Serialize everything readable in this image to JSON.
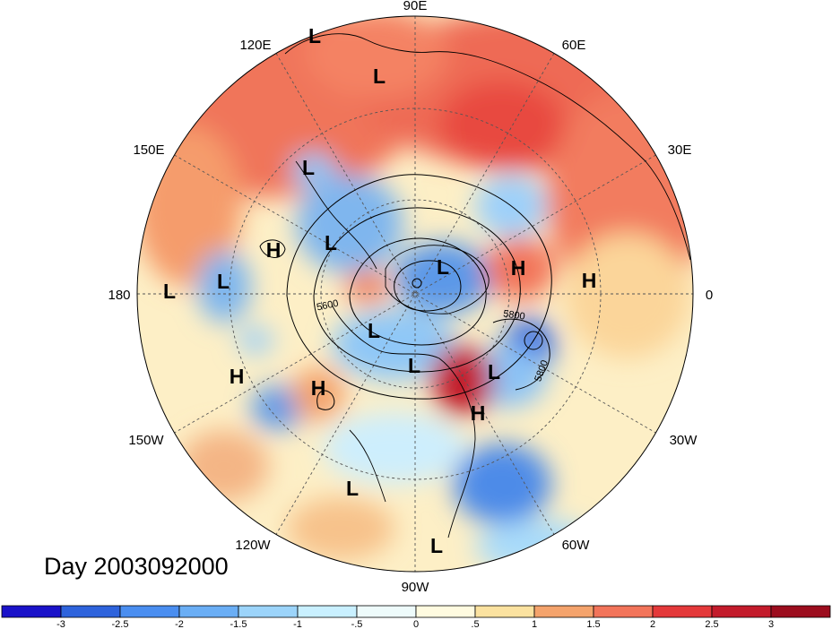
{
  "map": {
    "projection": "north-polar-stereographic",
    "longitude_labels": [
      "90E",
      "120E",
      "60E",
      "150E",
      "30E",
      "180",
      "0",
      "150W",
      "30W",
      "120W",
      "60W",
      "90W"
    ],
    "pressure_systems": [
      {
        "type": "L"
      },
      {
        "type": "L"
      },
      {
        "type": "L"
      },
      {
        "type": "L"
      },
      {
        "type": "H"
      },
      {
        "type": "L"
      },
      {
        "type": "L"
      },
      {
        "type": "H"
      },
      {
        "type": "H"
      },
      {
        "type": "L"
      },
      {
        "type": "L"
      },
      {
        "type": "L"
      },
      {
        "type": "H"
      },
      {
        "type": "L"
      },
      {
        "type": "H"
      },
      {
        "type": "H"
      },
      {
        "type": "L"
      },
      {
        "type": "L"
      }
    ],
    "contour_labels": [
      "5600",
      "5800",
      "5800"
    ],
    "colors": {
      "strong_negative": "#1414c8",
      "weak_negative": "#c8f0ff",
      "neutral": "#fffce0",
      "weak_positive": "#fbe3a4",
      "strong_positive": "#a50f1e",
      "contour": "#000000",
      "grid": "#555555"
    }
  },
  "caption": "Day 2003092000",
  "colorbar": {
    "tick_labels": [
      "-3",
      "-2.5",
      "-2",
      "-1.5",
      "-1",
      "-.5",
      "0",
      ".5",
      "1",
      "1.5",
      "2",
      "2.5",
      "3"
    ],
    "colors": [
      "#1a12c9",
      "#2e63dc",
      "#4a8ef0",
      "#6aaef5",
      "#9cd4fa",
      "#c9f0ff",
      "#eefbfb",
      "#fffbe0",
      "#fbe2a0",
      "#f4a36c",
      "#f2745a",
      "#e4393a",
      "#c31b2b",
      "#9c0d1e"
    ]
  }
}
